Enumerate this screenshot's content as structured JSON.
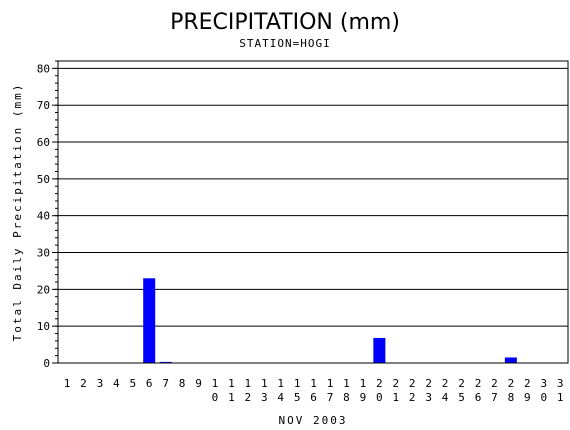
{
  "chart_data": {
    "type": "bar",
    "title": "PRECIPITATION (mm)",
    "subtitle": "STATION=HOGI",
    "xlabel": "NOV 2003",
    "ylabel": "Total Daily Precipitation (mm)",
    "ylim": [
      0,
      82
    ],
    "yticks": [
      0,
      10,
      20,
      30,
      40,
      50,
      60,
      70,
      80
    ],
    "grid": true,
    "bar_color": "#0000ff",
    "categories": [
      "1",
      "2",
      "3",
      "4",
      "5",
      "6",
      "7",
      "8",
      "9",
      "10",
      "11",
      "12",
      "13",
      "14",
      "15",
      "16",
      "17",
      "18",
      "19",
      "20",
      "21",
      "22",
      "23",
      "24",
      "25",
      "26",
      "27",
      "28",
      "29",
      "30",
      "31"
    ],
    "values": [
      0,
      0,
      0,
      0,
      0,
      23,
      0.3,
      0,
      0,
      0,
      0,
      0,
      0,
      0,
      0,
      0,
      0,
      0,
      0,
      6.8,
      0,
      0,
      0,
      0,
      0,
      0,
      0,
      1.5,
      0,
      0,
      0
    ]
  }
}
